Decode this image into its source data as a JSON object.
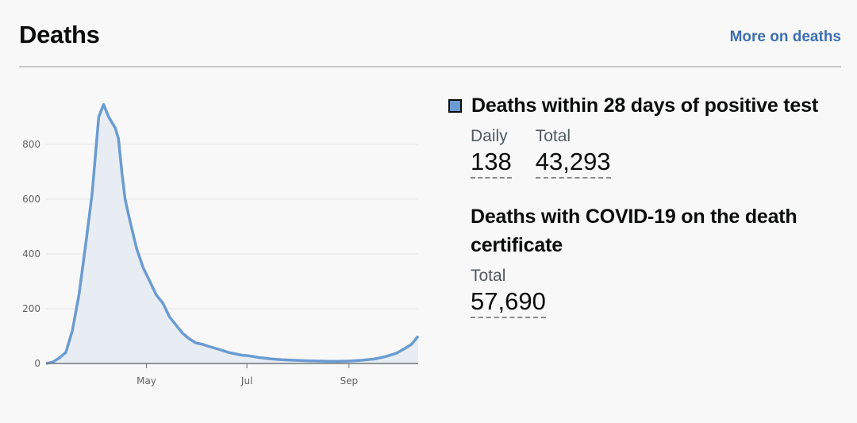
{
  "header": {
    "title": "Deaths",
    "more_link": "More on deaths"
  },
  "metrics": [
    {
      "title": "Deaths within 28 days of positive test",
      "legend_color": "#6b9bd2",
      "daily_label": "Daily",
      "daily_value": "138",
      "total_label": "Total",
      "total_value": "43,293"
    },
    {
      "title": "Deaths with COVID-19 on the death certificate",
      "total_label": "Total",
      "total_value": "57,690"
    }
  ],
  "chart_data": {
    "type": "area",
    "x_ticks": [
      "May",
      "Jul",
      "Sep"
    ],
    "y_ticks": [
      0,
      200,
      400,
      600,
      800
    ],
    "ylim": [
      0,
      950
    ],
    "grid": true,
    "series": [
      {
        "color": "#6b9bd2",
        "x": [
          "2020-03-01",
          "2020-03-05",
          "2020-03-09",
          "2020-03-13",
          "2020-03-17",
          "2020-03-21",
          "2020-03-25",
          "2020-03-29",
          "2020-04-02",
          "2020-04-05",
          "2020-04-08",
          "2020-04-10",
          "2020-04-12",
          "2020-04-14",
          "2020-04-16",
          "2020-04-18",
          "2020-04-21",
          "2020-04-25",
          "2020-04-29",
          "2020-05-03",
          "2020-05-07",
          "2020-05-11",
          "2020-05-15",
          "2020-05-19",
          "2020-05-23",
          "2020-05-27",
          "2020-05-31",
          "2020-06-04",
          "2020-06-08",
          "2020-06-12",
          "2020-06-16",
          "2020-06-20",
          "2020-06-24",
          "2020-06-28",
          "2020-07-02",
          "2020-07-08",
          "2020-07-15",
          "2020-07-22",
          "2020-07-29",
          "2020-08-05",
          "2020-08-12",
          "2020-08-19",
          "2020-08-26",
          "2020-09-02",
          "2020-09-09",
          "2020-09-16",
          "2020-09-23",
          "2020-09-30",
          "2020-10-05",
          "2020-10-09",
          "2020-10-13"
        ],
        "y": [
          0,
          5,
          20,
          40,
          120,
          250,
          430,
          620,
          900,
          945,
          900,
          880,
          860,
          820,
          700,
          600,
          520,
          420,
          350,
          300,
          250,
          220,
          170,
          140,
          110,
          90,
          75,
          70,
          62,
          55,
          48,
          40,
          35,
          30,
          28,
          22,
          17,
          14,
          12,
          10,
          9,
          8,
          8,
          9,
          12,
          16,
          25,
          38,
          55,
          70,
          100
        ]
      }
    ]
  }
}
